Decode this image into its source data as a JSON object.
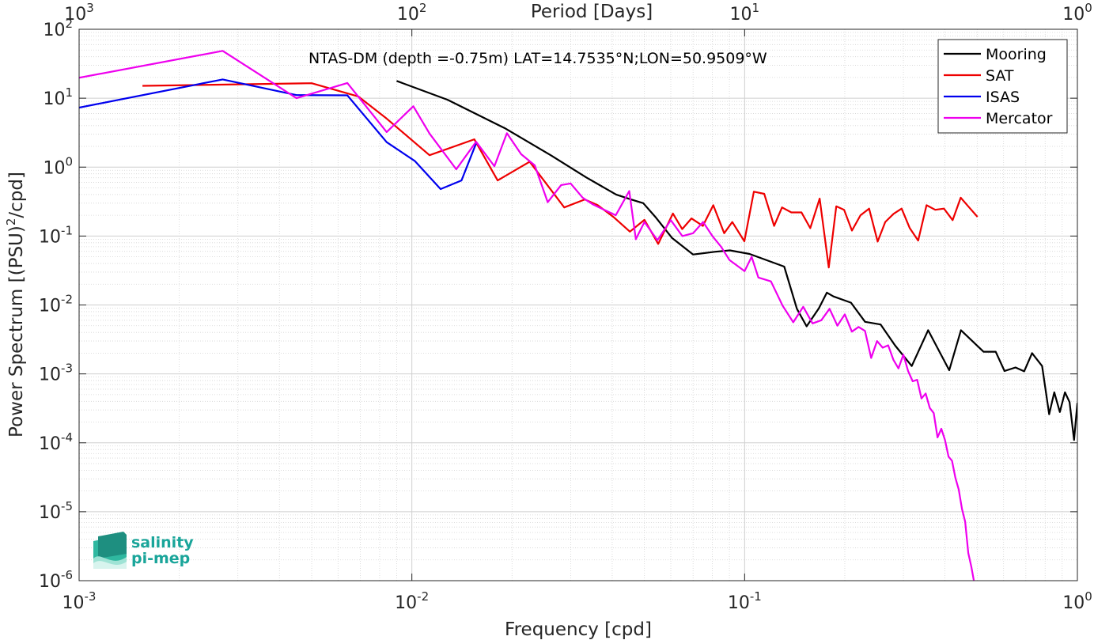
{
  "chart_data": {
    "type": "line",
    "title": "NTAS-DM (depth =-0.75m) LAT=14.7535°N;LON=50.9509°W",
    "xlabel": "Frequency [cpd]",
    "ylabel": "Power Spectrum [(PSU)^2/cpd]",
    "ylabel_main": "Power Spectrum [(PSU)",
    "ylabel_sup": "2",
    "ylabel_tail": "/cpd]",
    "top_xlabel": "Period [Days]",
    "xscale": "log",
    "yscale": "log",
    "xlim": [
      0.001,
      1
    ],
    "ylim": [
      1e-06,
      100
    ],
    "grid": true,
    "legend_position": "top-right",
    "x_ticks": [
      {
        "value": 0.001,
        "base": "10",
        "exp": "-3"
      },
      {
        "value": 0.01,
        "base": "10",
        "exp": "-2"
      },
      {
        "value": 0.1,
        "base": "10",
        "exp": "-1"
      },
      {
        "value": 1,
        "base": "10",
        "exp": "0"
      }
    ],
    "top_ticks": [
      {
        "value": 0.001,
        "base": "10",
        "exp": "3"
      },
      {
        "value": 0.01,
        "base": "10",
        "exp": "2"
      },
      {
        "value": 0.1,
        "base": "10",
        "exp": "1"
      },
      {
        "value": 1,
        "base": "10",
        "exp": "0"
      }
    ],
    "y_ticks": [
      {
        "value": 1e-06,
        "base": "10",
        "exp": "-6"
      },
      {
        "value": 1e-05,
        "base": "10",
        "exp": "-5"
      },
      {
        "value": 0.0001,
        "base": "10",
        "exp": "-4"
      },
      {
        "value": 0.001,
        "base": "10",
        "exp": "-3"
      },
      {
        "value": 0.01,
        "base": "10",
        "exp": "-2"
      },
      {
        "value": 0.1,
        "base": "10",
        "exp": "-1"
      },
      {
        "value": 1,
        "base": "10",
        "exp": "0"
      },
      {
        "value": 10,
        "base": "10",
        "exp": "1"
      },
      {
        "value": 100,
        "base": "10",
        "exp": "2"
      }
    ],
    "series": [
      {
        "name": "Mooring",
        "color": "#000000",
        "x": [
          0.009,
          0.0128,
          0.0191,
          0.0262,
          0.0334,
          0.0411,
          0.0455,
          0.0496,
          0.0539,
          0.0605,
          0.07,
          0.0812,
          0.0903,
          0.1035,
          0.1315,
          0.1436,
          0.1536,
          0.1671,
          0.1767,
          0.1849,
          0.2088,
          0.2301,
          0.2563,
          0.2831,
          0.3179,
          0.3559,
          0.412,
          0.4468,
          0.5222,
          0.568,
          0.604,
          0.6519,
          0.6919,
          0.7309,
          0.7833,
          0.8225,
          0.8525,
          0.8858,
          0.9178,
          0.9474,
          0.9774,
          1.0
        ],
        "y": [
          17.8,
          9.5,
          3.64,
          1.48,
          0.71,
          0.4,
          0.34,
          0.3,
          0.19,
          0.094,
          0.054,
          0.059,
          0.062,
          0.055,
          0.036,
          0.0088,
          0.0049,
          0.0089,
          0.0151,
          0.0133,
          0.0108,
          0.0057,
          0.0052,
          0.0026,
          0.0013,
          0.0043,
          0.00113,
          0.0043,
          0.0021,
          0.0021,
          0.0011,
          0.00124,
          0.00109,
          0.002,
          0.0013,
          0.00026,
          0.00054,
          0.00028,
          0.00054,
          0.00039,
          0.00011,
          0.00038
        ]
      },
      {
        "name": "SAT",
        "color": "#ee0000",
        "x": [
          0.00155,
          0.005,
          0.0069,
          0.0084,
          0.0113,
          0.0154,
          0.0181,
          0.0226,
          0.0287,
          0.0331,
          0.0362,
          0.0403,
          0.0452,
          0.05,
          0.055,
          0.0609,
          0.0649,
          0.0692,
          0.0749,
          0.0805,
          0.0868,
          0.0918,
          0.0998,
          0.1066,
          0.1145,
          0.1226,
          0.1295,
          0.1382,
          0.1482,
          0.1575,
          0.1681,
          0.179,
          0.1886,
          0.1991,
          0.2101,
          0.2229,
          0.2366,
          0.2511,
          0.2646,
          0.2803,
          0.2963,
          0.3136,
          0.3322,
          0.3521,
          0.374,
          0.3971,
          0.4218,
          0.446,
          0.473,
          0.501
        ],
        "y": [
          15.1,
          16.5,
          10.6,
          5.06,
          1.49,
          2.53,
          0.64,
          1.2,
          0.26,
          0.34,
          0.28,
          0.19,
          0.116,
          0.172,
          0.077,
          0.212,
          0.126,
          0.18,
          0.14,
          0.28,
          0.11,
          0.16,
          0.084,
          0.44,
          0.41,
          0.14,
          0.26,
          0.22,
          0.22,
          0.13,
          0.35,
          0.035,
          0.27,
          0.24,
          0.12,
          0.2,
          0.25,
          0.083,
          0.16,
          0.21,
          0.25,
          0.13,
          0.086,
          0.28,
          0.24,
          0.25,
          0.17,
          0.36,
          0.26,
          0.19
        ]
      },
      {
        "name": "ISAS",
        "color": "#0000ee",
        "x": [
          0.001,
          0.0027,
          0.0045,
          0.0064,
          0.0084,
          0.0102,
          0.0122,
          0.0141,
          0.0156
        ],
        "y": [
          7.3,
          18.7,
          11.1,
          11.0,
          2.3,
          1.23,
          0.48,
          0.64,
          2.21
        ]
      },
      {
        "name": "Mercator",
        "color": "#ee00ee",
        "x": [
          0.001,
          0.0027,
          0.0045,
          0.0064,
          0.0084,
          0.0101,
          0.0113,
          0.0136,
          0.0156,
          0.0177,
          0.0193,
          0.0213,
          0.0234,
          0.0256,
          0.0281,
          0.03,
          0.0326,
          0.0349,
          0.0372,
          0.041,
          0.045,
          0.0471,
          0.05,
          0.0547,
          0.06,
          0.065,
          0.07,
          0.075,
          0.08,
          0.085,
          0.09,
          0.1,
          0.105,
          0.11,
          0.12,
          0.13,
          0.14,
          0.15,
          0.16,
          0.17,
          0.18,
          0.19,
          0.2,
          0.21,
          0.22,
          0.23,
          0.24,
          0.25,
          0.26,
          0.27,
          0.28,
          0.29,
          0.3,
          0.31,
          0.32,
          0.33,
          0.34,
          0.35,
          0.36,
          0.37,
          0.38,
          0.39,
          0.4,
          0.41,
          0.42,
          0.43,
          0.44,
          0.45,
          0.46,
          0.47,
          0.48,
          0.49,
          0.5
        ],
        "y": [
          19.8,
          48.6,
          10.0,
          16.6,
          3.23,
          7.65,
          3.07,
          0.93,
          2.33,
          1.03,
          3.1,
          1.54,
          1.06,
          0.31,
          0.55,
          0.58,
          0.36,
          0.29,
          0.25,
          0.2,
          0.45,
          0.09,
          0.16,
          0.087,
          0.17,
          0.1,
          0.11,
          0.16,
          0.1,
          0.07,
          0.045,
          0.031,
          0.05,
          0.025,
          0.022,
          0.0098,
          0.0056,
          0.0094,
          0.0054,
          0.006,
          0.0088,
          0.005,
          0.0073,
          0.0041,
          0.0048,
          0.0042,
          0.0017,
          0.003,
          0.0024,
          0.0026,
          0.0016,
          0.0012,
          0.0019,
          0.0011,
          0.00078,
          0.00082,
          0.00044,
          0.00052,
          0.00032,
          0.00027,
          0.00012,
          0.00016,
          0.00011,
          6.3e-05,
          5.5e-05,
          3.1e-05,
          2.1e-05,
          1.1e-05,
          7.2e-06,
          2.5e-06,
          1.6e-06,
          9.2e-07,
          9e-07
        ]
      }
    ]
  },
  "logo": {
    "line1": "salinity",
    "line2": "pi-mep",
    "color": "#1aa59a"
  }
}
